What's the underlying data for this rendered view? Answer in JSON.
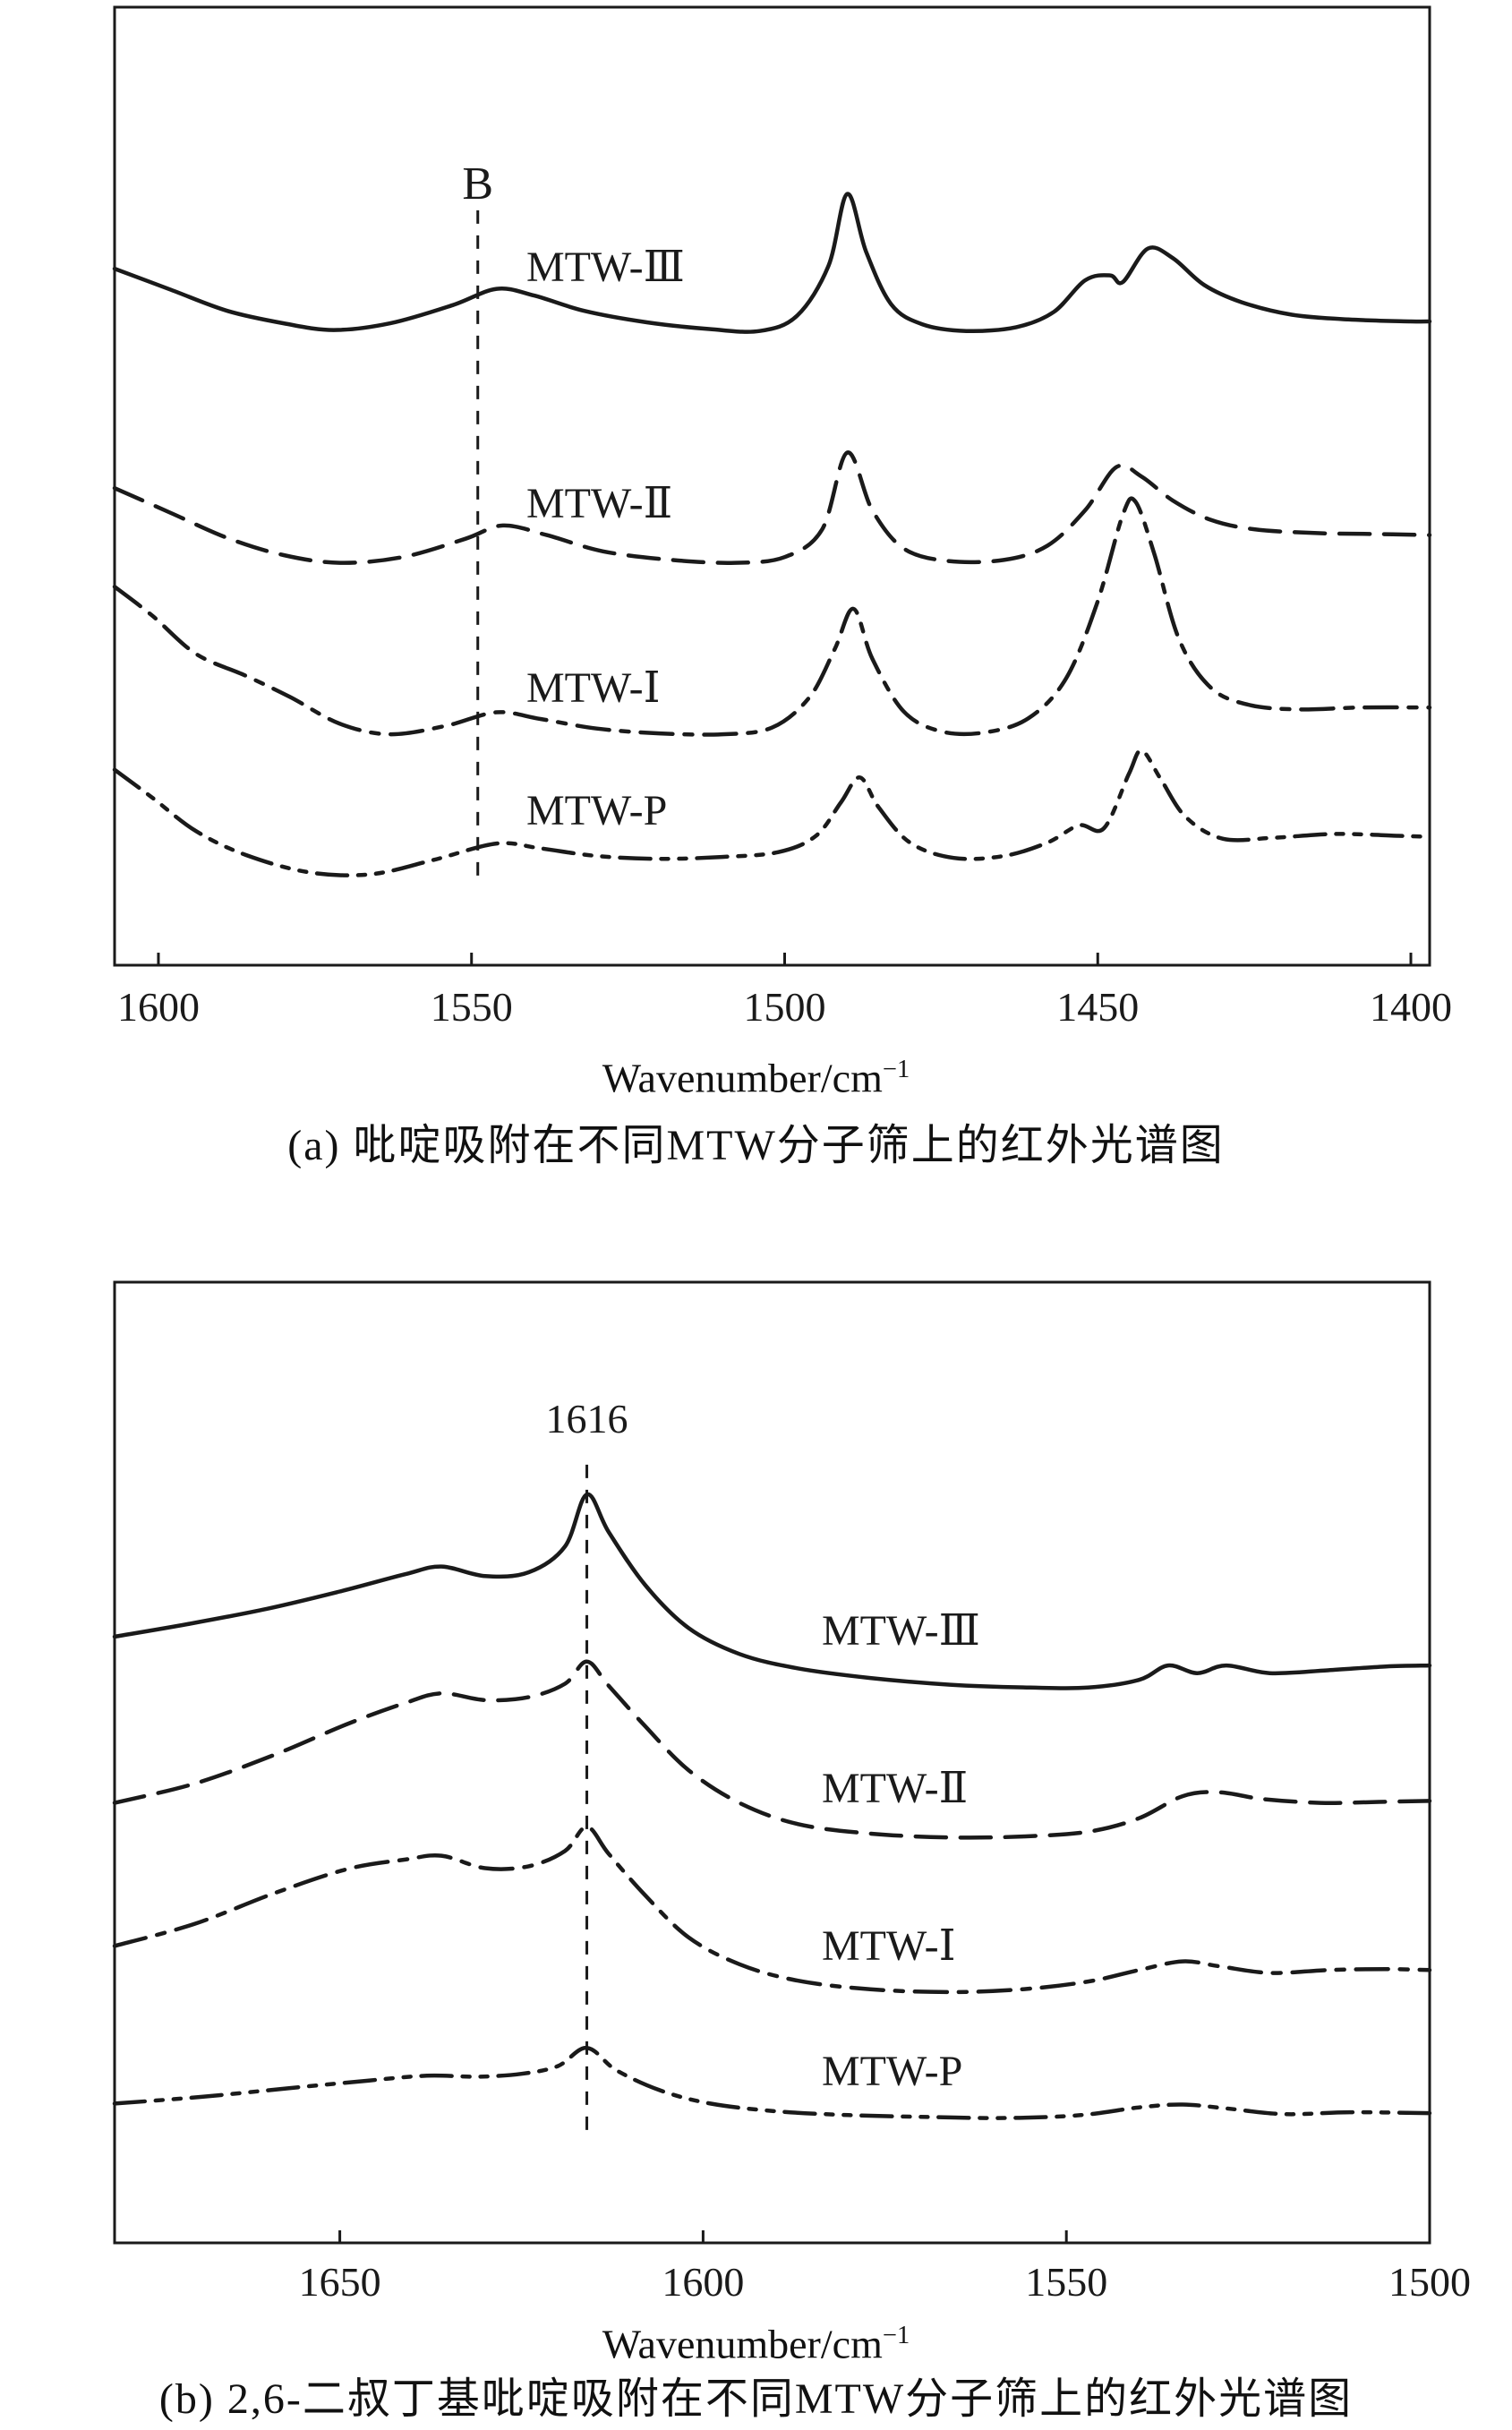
{
  "page": {
    "background": "#ffffff",
    "line_color": "#1a1a1a"
  },
  "chart_data": [
    {
      "type": "line",
      "panel": "a",
      "description": "IR spectra of pyridine adsorbed on different MTW molecular sieves",
      "xlabel_base": "Wavenumber/cm",
      "xlabel_sup": "−1",
      "caption": "(a) 吡啶吸附在不同MTW分子筛上的红外光谱图",
      "x_ticks": [
        1600,
        1550,
        1500,
        1450,
        1400
      ],
      "xlim": [
        1607,
        1397
      ],
      "ylim": [
        0,
        100
      ],
      "x_axis_reversed": true,
      "y_axis_visible": false,
      "grid": false,
      "marker": {
        "x": 1549,
        "label": "B"
      },
      "series": [
        {
          "id": "mtw-3",
          "name": "MTW-Ⅲ",
          "style": "solid",
          "points": [
            [
              1607,
              72.7
            ],
            [
              1598,
              70.5
            ],
            [
              1589,
              68.3
            ],
            [
              1580,
              67.0
            ],
            [
              1572,
              66.3
            ],
            [
              1563,
              67.0
            ],
            [
              1553,
              68.9
            ],
            [
              1546,
              70.6
            ],
            [
              1540,
              69.9
            ],
            [
              1532,
              68.3
            ],
            [
              1522,
              67.1
            ],
            [
              1512,
              66.4
            ],
            [
              1504,
              66.2
            ],
            [
              1498,
              67.8
            ],
            [
              1493,
              73.0
            ],
            [
              1490,
              80.5
            ],
            [
              1487,
              74.5
            ],
            [
              1483,
              69.0
            ],
            [
              1478,
              66.9
            ],
            [
              1471,
              66.2
            ],
            [
              1463,
              66.6
            ],
            [
              1457,
              68.2
            ],
            [
              1452,
              71.5
            ],
            [
              1448,
              72.0
            ],
            [
              1446,
              71.3
            ],
            [
              1442,
              74.8
            ],
            [
              1438,
              73.8
            ],
            [
              1433,
              71.0
            ],
            [
              1427,
              69.2
            ],
            [
              1419,
              67.9
            ],
            [
              1410,
              67.4
            ],
            [
              1400,
              67.2
            ],
            [
              1397,
              67.2
            ]
          ]
        },
        {
          "id": "mtw-2",
          "name": "MTW-Ⅱ",
          "style": "dashed",
          "points": [
            [
              1607,
              49.8
            ],
            [
              1598,
              47.2
            ],
            [
              1589,
              44.6
            ],
            [
              1580,
              42.8
            ],
            [
              1571,
              42.0
            ],
            [
              1561,
              42.6
            ],
            [
              1551,
              44.5
            ],
            [
              1545,
              45.9
            ],
            [
              1538,
              44.9
            ],
            [
              1529,
              43.2
            ],
            [
              1518,
              42.3
            ],
            [
              1508,
              42.0
            ],
            [
              1500,
              42.6
            ],
            [
              1494,
              45.5
            ],
            [
              1490,
              53.5
            ],
            [
              1486,
              47.5
            ],
            [
              1481,
              43.5
            ],
            [
              1474,
              42.2
            ],
            [
              1465,
              42.3
            ],
            [
              1458,
              43.8
            ],
            [
              1452,
              47.5
            ],
            [
              1447,
              52.0
            ],
            [
              1443,
              51.0
            ],
            [
              1438,
              48.5
            ],
            [
              1432,
              46.5
            ],
            [
              1425,
              45.5
            ],
            [
              1415,
              45.1
            ],
            [
              1405,
              45.0
            ],
            [
              1397,
              44.9
            ]
          ]
        },
        {
          "id": "mtw-1",
          "name": "MTW-Ⅰ",
          "style": "dash-dot",
          "points": [
            [
              1607,
              39.5
            ],
            [
              1601,
              36.5
            ],
            [
              1594,
              32.5
            ],
            [
              1586,
              30.2
            ],
            [
              1579,
              28.0
            ],
            [
              1571,
              25.2
            ],
            [
              1563,
              24.1
            ],
            [
              1554,
              25.0
            ],
            [
              1546,
              26.4
            ],
            [
              1539,
              25.7
            ],
            [
              1530,
              24.7
            ],
            [
              1520,
              24.2
            ],
            [
              1510,
              24.1
            ],
            [
              1502,
              24.8
            ],
            [
              1496,
              28.0
            ],
            [
              1492,
              33.0
            ],
            [
              1489,
              37.2
            ],
            [
              1486,
              32.0
            ],
            [
              1481,
              26.5
            ],
            [
              1475,
              24.4
            ],
            [
              1468,
              24.3
            ],
            [
              1461,
              25.8
            ],
            [
              1455,
              30.0
            ],
            [
              1450,
              38.0
            ],
            [
              1446,
              47.0
            ],
            [
              1444,
              48.4
            ],
            [
              1441,
              43.0
            ],
            [
              1437,
              34.0
            ],
            [
              1432,
              29.0
            ],
            [
              1426,
              27.2
            ],
            [
              1418,
              26.7
            ],
            [
              1408,
              26.9
            ],
            [
              1397,
              26.9
            ]
          ]
        },
        {
          "id": "mtw-p",
          "name": "MTW-P",
          "style": "dash-dot-dot",
          "points": [
            [
              1607,
              20.4
            ],
            [
              1601,
              17.5
            ],
            [
              1594,
              14.0
            ],
            [
              1586,
              11.5
            ],
            [
              1576,
              9.7
            ],
            [
              1566,
              9.5
            ],
            [
              1556,
              11.0
            ],
            [
              1546,
              12.7
            ],
            [
              1539,
              12.2
            ],
            [
              1530,
              11.4
            ],
            [
              1520,
              11.1
            ],
            [
              1510,
              11.3
            ],
            [
              1501,
              11.8
            ],
            [
              1495,
              13.5
            ],
            [
              1491,
              17.0
            ],
            [
              1488,
              19.6
            ],
            [
              1485,
              16.5
            ],
            [
              1480,
              12.8
            ],
            [
              1473,
              11.2
            ],
            [
              1465,
              11.4
            ],
            [
              1458,
              12.8
            ],
            [
              1453,
              14.6
            ],
            [
              1449,
              14.3
            ],
            [
              1445,
              20.0
            ],
            [
              1443,
              22.4
            ],
            [
              1440,
              19.5
            ],
            [
              1436,
              15.5
            ],
            [
              1430,
              13.2
            ],
            [
              1422,
              13.3
            ],
            [
              1412,
              13.7
            ],
            [
              1402,
              13.5
            ],
            [
              1397,
              13.4
            ]
          ]
        }
      ]
    },
    {
      "type": "line",
      "panel": "b",
      "description": "IR spectra of 2,6-di-tert-butylpyridine adsorbed on different MTW molecular sieves",
      "xlabel_base": "Wavenumber/cm",
      "xlabel_sup": "−1",
      "caption": "(b) 2,6-二叔丁基吡啶吸附在不同MTW分子筛上的红外光谱图",
      "x_ticks": [
        1650,
        1600,
        1550,
        1500
      ],
      "xlim": [
        1681,
        1500
      ],
      "ylim": [
        0,
        100
      ],
      "x_axis_reversed": true,
      "y_axis_visible": false,
      "grid": false,
      "marker": {
        "x": 1616,
        "label": "1616"
      },
      "series": [
        {
          "id": "mtw-3",
          "name": "MTW-Ⅲ",
          "style": "solid",
          "points": [
            [
              1681,
              63.1
            ],
            [
              1671,
              64.4
            ],
            [
              1660,
              66.0
            ],
            [
              1650,
              67.8
            ],
            [
              1641,
              69.6
            ],
            [
              1636,
              70.4
            ],
            [
              1630,
              69.4
            ],
            [
              1624,
              69.8
            ],
            [
              1619,
              72.5
            ],
            [
              1616,
              77.9
            ],
            [
              1613,
              74.0
            ],
            [
              1608,
              68.5
            ],
            [
              1602,
              64.0
            ],
            [
              1595,
              61.3
            ],
            [
              1587,
              59.8
            ],
            [
              1577,
              58.8
            ],
            [
              1566,
              58.1
            ],
            [
              1555,
              57.8
            ],
            [
              1547,
              57.8
            ],
            [
              1540,
              58.6
            ],
            [
              1536,
              60.1
            ],
            [
              1532,
              59.3
            ],
            [
              1528,
              60.1
            ],
            [
              1522,
              59.3
            ],
            [
              1514,
              59.6
            ],
            [
              1506,
              60.0
            ],
            [
              1500,
              60.1
            ]
          ]
        },
        {
          "id": "mtw-2",
          "name": "MTW-Ⅱ",
          "style": "dashed",
          "points": [
            [
              1681,
              45.8
            ],
            [
              1670,
              47.8
            ],
            [
              1659,
              50.8
            ],
            [
              1649,
              54.0
            ],
            [
              1641,
              56.2
            ],
            [
              1636,
              57.2
            ],
            [
              1630,
              56.5
            ],
            [
              1624,
              56.8
            ],
            [
              1619,
              58.2
            ],
            [
              1616,
              60.5
            ],
            [
              1613,
              58.0
            ],
            [
              1608,
              53.8
            ],
            [
              1602,
              49.2
            ],
            [
              1595,
              45.8
            ],
            [
              1587,
              43.6
            ],
            [
              1577,
              42.6
            ],
            [
              1566,
              42.2
            ],
            [
              1556,
              42.3
            ],
            [
              1547,
              42.8
            ],
            [
              1540,
              44.2
            ],
            [
              1534,
              46.5
            ],
            [
              1529,
              46.9
            ],
            [
              1523,
              46.2
            ],
            [
              1515,
              45.8
            ],
            [
              1507,
              45.9
            ],
            [
              1500,
              46.0
            ]
          ]
        },
        {
          "id": "mtw-1",
          "name": "MTW-Ⅰ",
          "style": "dash-dot",
          "points": [
            [
              1681,
              30.9
            ],
            [
              1670,
              33.2
            ],
            [
              1659,
              36.4
            ],
            [
              1649,
              38.9
            ],
            [
              1641,
              39.9
            ],
            [
              1636,
              40.3
            ],
            [
              1630,
              39.0
            ],
            [
              1624,
              39.2
            ],
            [
              1619,
              40.8
            ],
            [
              1616,
              43.3
            ],
            [
              1613,
              40.5
            ],
            [
              1608,
              36.2
            ],
            [
              1602,
              31.8
            ],
            [
              1595,
              29.0
            ],
            [
              1587,
              27.3
            ],
            [
              1577,
              26.4
            ],
            [
              1566,
              26.1
            ],
            [
              1556,
              26.4
            ],
            [
              1547,
              27.2
            ],
            [
              1540,
              28.4
            ],
            [
              1534,
              29.3
            ],
            [
              1529,
              28.8
            ],
            [
              1522,
              28.1
            ],
            [
              1514,
              28.4
            ],
            [
              1506,
              28.5
            ],
            [
              1500,
              28.4
            ]
          ]
        },
        {
          "id": "mtw-p",
          "name": "MTW-P",
          "style": "dash-dot-dot",
          "points": [
            [
              1681,
              14.5
            ],
            [
              1669,
              15.2
            ],
            [
              1657,
              16.1
            ],
            [
              1646,
              16.9
            ],
            [
              1638,
              17.4
            ],
            [
              1631,
              17.3
            ],
            [
              1625,
              17.6
            ],
            [
              1620,
              18.4
            ],
            [
              1616,
              20.3
            ],
            [
              1612,
              18.0
            ],
            [
              1606,
              15.9
            ],
            [
              1599,
              14.5
            ],
            [
              1590,
              13.7
            ],
            [
              1580,
              13.3
            ],
            [
              1569,
              13.1
            ],
            [
              1558,
              13.0
            ],
            [
              1548,
              13.3
            ],
            [
              1540,
              14.1
            ],
            [
              1534,
              14.4
            ],
            [
              1528,
              14.0
            ],
            [
              1520,
              13.4
            ],
            [
              1511,
              13.6
            ],
            [
              1500,
              13.5
            ]
          ]
        }
      ]
    }
  ]
}
